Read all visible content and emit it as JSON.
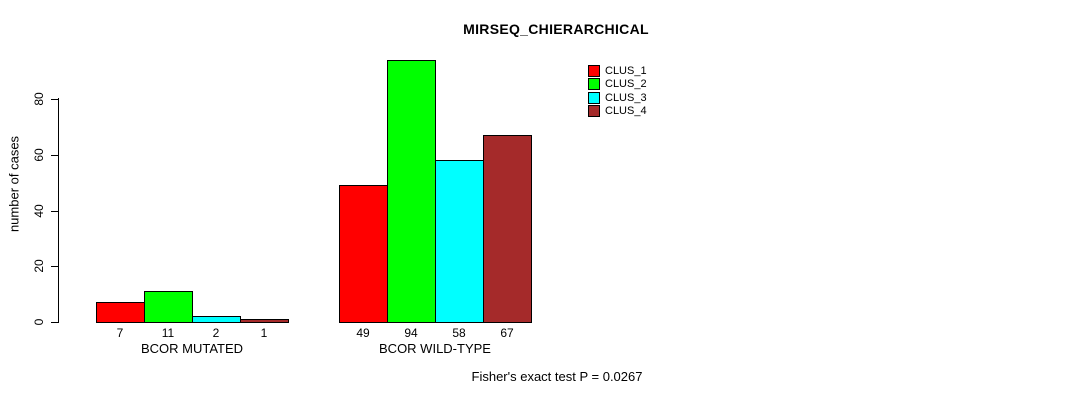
{
  "chart_data": {
    "type": "bar",
    "title": "MIRSEQ_CHIERARCHICAL",
    "ylabel": "number of cases",
    "xlabel": "",
    "categories": [
      "BCOR MUTATED",
      "BCOR WILD-TYPE"
    ],
    "series": [
      {
        "name": "CLUS_1",
        "color": "#FF0000",
        "values": [
          7,
          49
        ]
      },
      {
        "name": "CLUS_2",
        "color": "#00FF00",
        "values": [
          11,
          94
        ]
      },
      {
        "name": "CLUS_3",
        "color": "#00FFFF",
        "values": [
          2,
          58
        ]
      },
      {
        "name": "CLUS_4",
        "color": "#A52A2A",
        "values": [
          1,
          67
        ]
      }
    ],
    "yticks": [
      0,
      20,
      40,
      60,
      80
    ],
    "ylim": [
      0,
      95
    ],
    "grid": false,
    "bar_outline_color": "#000000",
    "value_labels_shown": true,
    "legend_position": "top-right",
    "annotation": "Fisher's exact test P = 0.0267"
  }
}
